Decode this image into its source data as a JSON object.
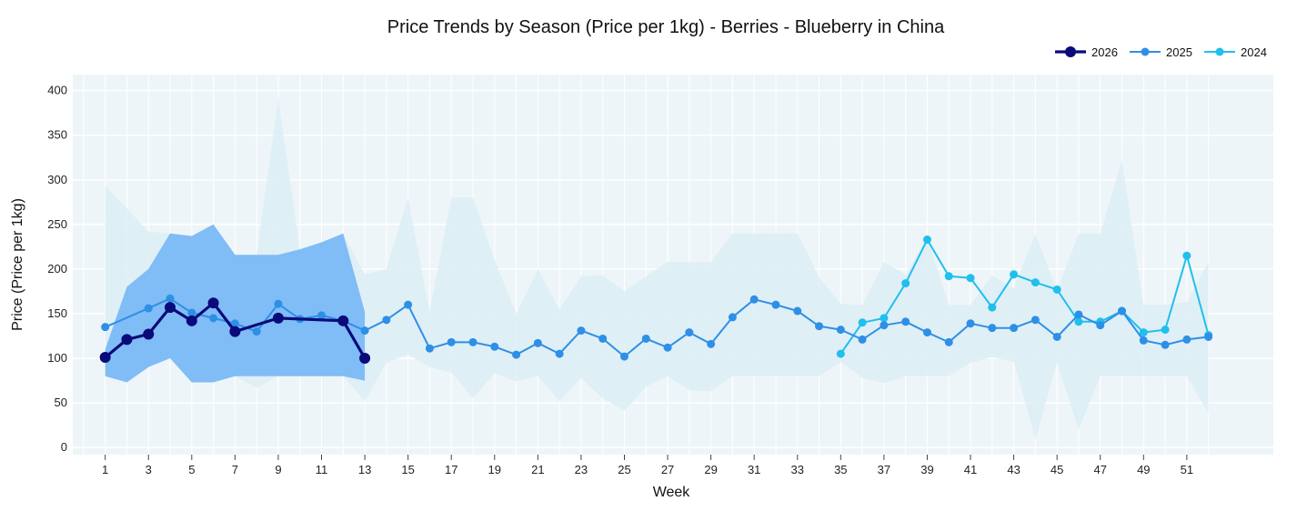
{
  "chart_data": {
    "type": "line",
    "title": "Price Trends by Season (Price per 1kg) - Berries - Blueberry in China",
    "xlabel": "Week",
    "ylabel": "Price (Price per 1kg)",
    "xlim": [
      -0.5,
      55
    ],
    "ylim": [
      -8,
      418
    ],
    "x_ticks": [
      1,
      3,
      5,
      7,
      9,
      11,
      13,
      15,
      17,
      19,
      21,
      23,
      25,
      27,
      29,
      31,
      33,
      35,
      37,
      39,
      41,
      43,
      45,
      47,
      49,
      51
    ],
    "y_ticks": [
      0,
      50,
      100,
      150,
      200,
      250,
      300,
      350,
      400
    ],
    "legend_position": "top-right",
    "colors": {
      "plot_bg": "#eef5f9",
      "grid": "#ffffff",
      "band_2026": "#7ab8f5",
      "band_hist": "#d9ecf4"
    },
    "series": [
      {
        "name": "2026",
        "color": "#0a0a7a",
        "x": [
          1,
          2,
          3,
          4,
          5,
          6,
          7,
          9,
          12,
          13
        ],
        "y": [
          101,
          121,
          127,
          157,
          142,
          162,
          130,
          145,
          142,
          100
        ]
      },
      {
        "name": "2025",
        "color": "#2e8fe6",
        "x": [
          1,
          3,
          4,
          5,
          6,
          7,
          8,
          9,
          10,
          11,
          12,
          13,
          14,
          15,
          16,
          17,
          18,
          19,
          20,
          21,
          22,
          23,
          24,
          25,
          26,
          27,
          28,
          29,
          30,
          31,
          32,
          33,
          34,
          35,
          36,
          37,
          38,
          39,
          40,
          41,
          42,
          43,
          44,
          45,
          46,
          47,
          48,
          49,
          50,
          51,
          52
        ],
        "y": [
          135,
          156,
          167,
          151,
          145,
          139,
          130,
          161,
          144,
          148,
          142,
          131,
          143,
          160,
          111,
          118,
          118,
          113,
          104,
          117,
          105,
          131,
          122,
          102,
          122,
          112,
          129,
          116,
          146,
          166,
          160,
          153,
          136,
          132,
          121,
          137,
          141,
          129,
          118,
          139,
          134,
          134,
          143,
          124,
          149,
          137,
          153,
          120,
          115,
          121,
          124
        ]
      },
      {
        "name": "2024",
        "color": "#1fbfee",
        "x": [
          35,
          36,
          37,
          38,
          39,
          40,
          41,
          42,
          43,
          44,
          45,
          46,
          47,
          48,
          49,
          50,
          51,
          52
        ],
        "y": [
          105,
          140,
          145,
          184,
          233,
          192,
          190,
          157,
          194,
          185,
          177,
          141,
          141,
          153,
          129,
          132,
          215,
          126
        ]
      }
    ],
    "bands": [
      {
        "name": "2026 range",
        "x": [
          1,
          2,
          3,
          4,
          5,
          6,
          7,
          8,
          9,
          10,
          11,
          12,
          13
        ],
        "upper": [
          110,
          180,
          200,
          240,
          237,
          250,
          216,
          216,
          216,
          222,
          230,
          240,
          152
        ],
        "lower": [
          80,
          73,
          90,
          100,
          73,
          73,
          80,
          80,
          80,
          80,
          80,
          80,
          75
        ]
      },
      {
        "name": "historical range",
        "x": [
          1,
          2,
          3,
          4,
          5,
          6,
          7,
          8,
          9,
          10,
          11,
          12,
          13,
          14,
          15,
          16,
          17,
          18,
          19,
          20,
          21,
          22,
          23,
          24,
          25,
          26,
          27,
          28,
          29,
          30,
          31,
          32,
          33,
          34,
          35,
          36,
          37,
          38,
          39,
          40,
          41,
          42,
          43,
          44,
          45,
          46,
          47,
          48,
          49,
          50,
          51,
          52
        ],
        "upper": [
          293,
          268,
          242,
          240,
          237,
          250,
          216,
          216,
          392,
          222,
          230,
          240,
          194,
          200,
          280,
          152,
          280,
          280,
          210,
          150,
          200,
          155,
          192,
          193,
          175,
          192,
          208,
          208,
          208,
          240,
          240,
          240,
          240,
          191,
          161,
          160,
          208,
          194,
          235,
          160,
          160,
          193,
          178,
          240,
          175,
          240,
          240,
          322,
          160,
          160,
          163,
          208
        ],
        "lower": [
          80,
          73,
          90,
          100,
          73,
          73,
          80,
          67,
          80,
          80,
          80,
          80,
          52,
          95,
          104,
          90,
          84,
          55,
          83,
          74,
          80,
          52,
          78,
          55,
          41,
          68,
          80,
          64,
          63,
          80,
          80,
          80,
          80,
          80,
          96,
          78,
          72,
          80,
          80,
          80,
          95,
          101,
          96,
          9,
          95,
          20,
          80,
          80,
          80,
          80,
          80,
          38
        ]
      }
    ]
  }
}
